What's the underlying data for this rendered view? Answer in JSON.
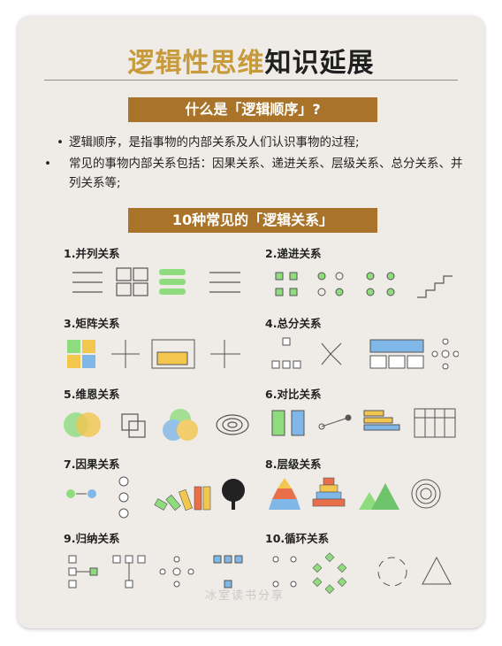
{
  "title": {
    "part1": "逻辑性思维",
    "part2": "知识延展"
  },
  "banner1": "什么是「逻辑顺序」?",
  "bullets": [
    "逻辑顺序，是指事物的内部关系及人们认识事物的过程;",
    "常见的事物内部关系包括：因果关系、递进关系、层级关系、总分关系、并列关系等;"
  ],
  "banner2": "10种常见的「逻辑关系」",
  "sections": [
    {
      "label": "1.并列关系"
    },
    {
      "label": "2.递进关系"
    },
    {
      "label": "3.矩阵关系"
    },
    {
      "label": "4.总分关系"
    },
    {
      "label": "5.维恩关系"
    },
    {
      "label": "6.对比关系"
    },
    {
      "label": "7.因果关系"
    },
    {
      "label": "8.层级关系"
    },
    {
      "label": "9.归纳关系"
    },
    {
      "label": "10.循环关系"
    }
  ],
  "watermark": "冰室读书分享",
  "colors": {
    "gold": "#c79a3b",
    "banner": "#a9742a",
    "green": "#8fdc7f",
    "blue": "#7fb7e8",
    "yellow": "#f3c64e",
    "red": "#e96e4a"
  }
}
